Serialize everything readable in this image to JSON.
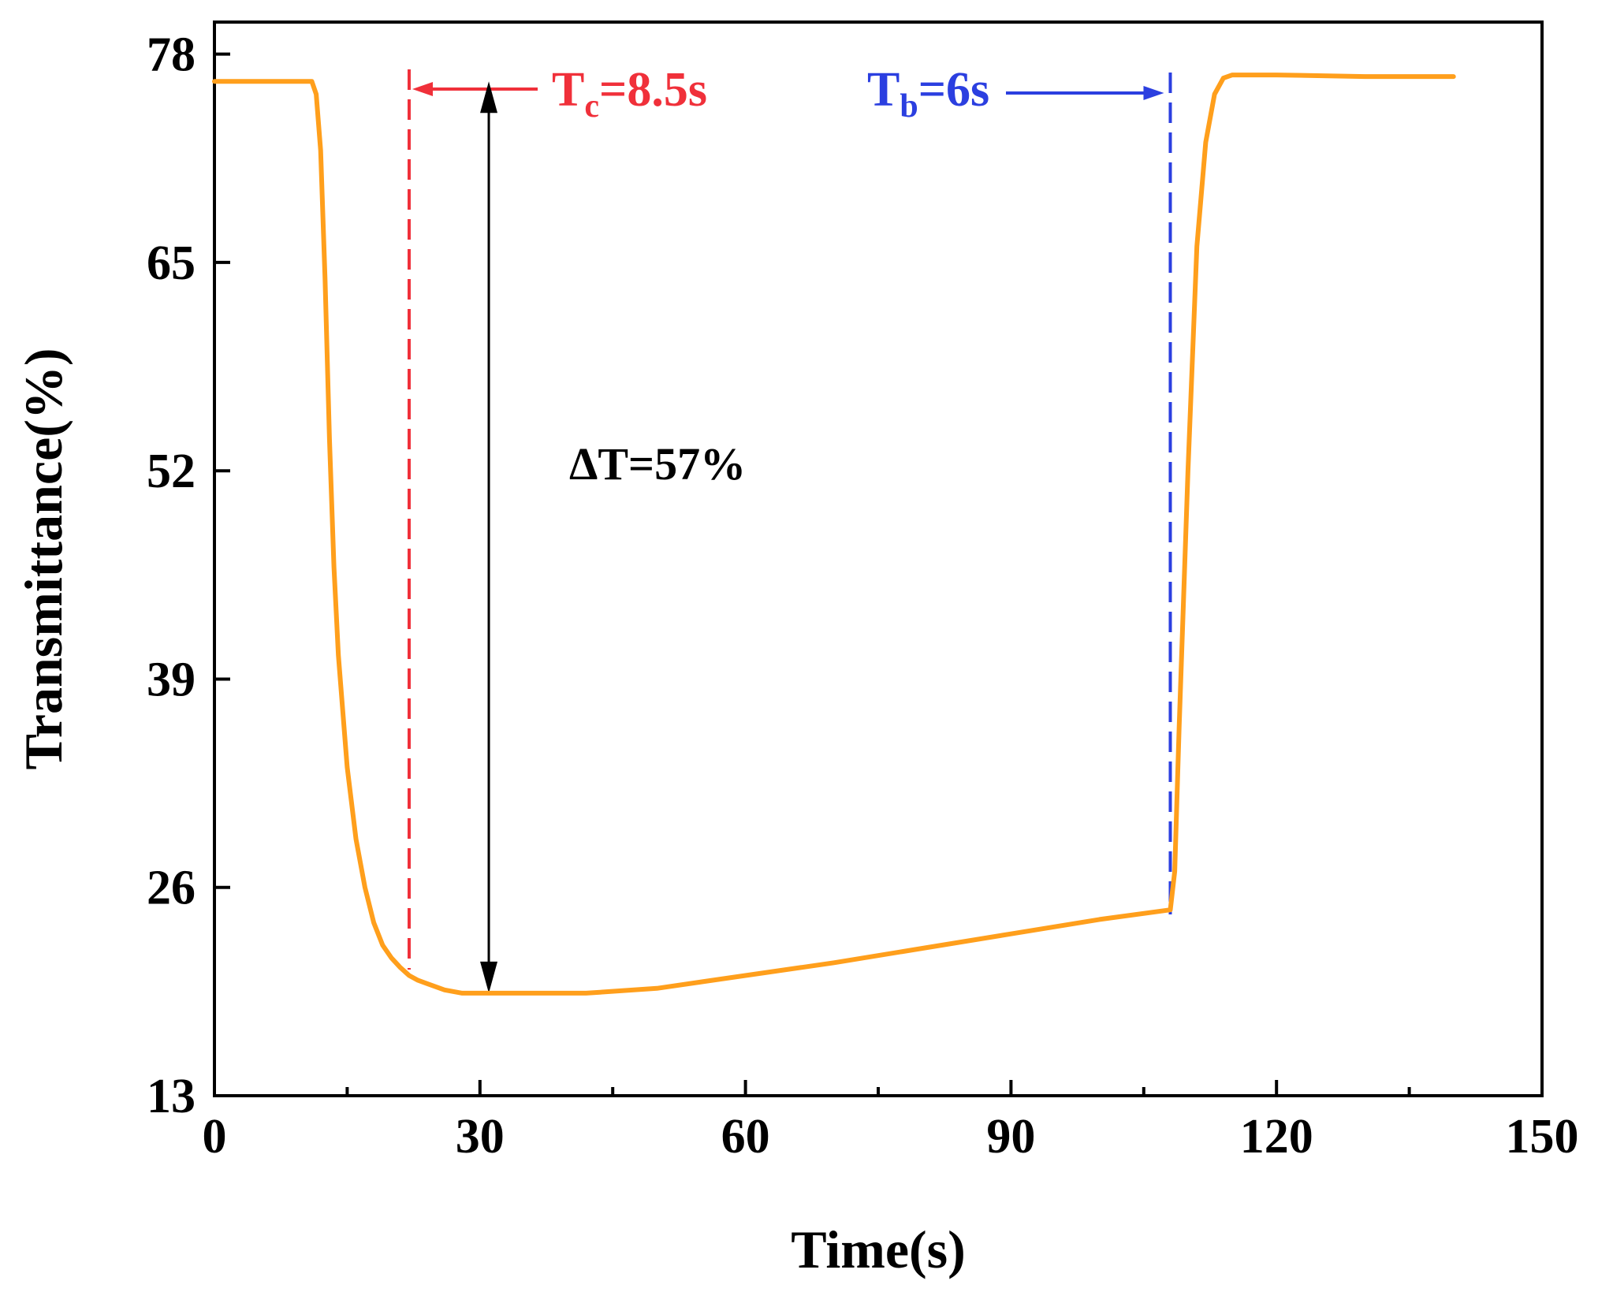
{
  "colors": {
    "curve": "#ff9f1c",
    "tc_marker": "#f0303a",
    "tb_marker": "#2b3fe0",
    "axis": "#000000"
  },
  "chart_data": {
    "type": "line",
    "title": "",
    "xlabel": "Time(s)",
    "ylabel": "Transmittance(%)",
    "xlim": [
      0,
      150
    ],
    "ylim": [
      13,
      80
    ],
    "xticks": [
      0,
      30,
      60,
      90,
      120,
      150
    ],
    "xtick_labels": [
      "0",
      "30",
      "60",
      "90",
      "120",
      "150"
    ],
    "yticks": [
      13,
      26,
      39,
      52,
      65,
      78
    ],
    "ytick_labels": [
      "13",
      "26",
      "39",
      "52",
      "65",
      "78"
    ],
    "grid": false,
    "series": [
      {
        "name": "Transmittance",
        "x": [
          0,
          11,
          11.5,
          12,
          12.5,
          13,
          13.5,
          14,
          15,
          16,
          17,
          18,
          19,
          20,
          21,
          22,
          23,
          24,
          26,
          28,
          30,
          35,
          42,
          50,
          60,
          70,
          80,
          90,
          100,
          108,
          108.5,
          109,
          110,
          111,
          112,
          113,
          114,
          115,
          116,
          120,
          130,
          140
        ],
        "y": [
          76.3,
          76.3,
          75.5,
          72,
          64,
          54,
          46,
          40.5,
          33.5,
          29,
          26,
          23.8,
          22.4,
          21.6,
          21,
          20.5,
          20.2,
          20,
          19.6,
          19.4,
          19.4,
          19.4,
          19.4,
          19.7,
          20.5,
          21.3,
          22.2,
          23.1,
          24,
          24.6,
          27,
          36,
          52,
          66,
          72.5,
          75.5,
          76.5,
          76.7,
          76.7,
          76.7,
          76.6,
          76.6
        ]
      }
    ],
    "annotations": {
      "tc": {
        "x": 22,
        "label_main": "T",
        "label_sub": "c",
        "label_rest": "=8.5s"
      },
      "tb": {
        "x": 108,
        "label_main": "T",
        "label_sub": "b",
        "label_rest": "=6s"
      },
      "delta": {
        "x": 31,
        "y_top": 76.3,
        "y_bottom": 19.4,
        "label": "ΔT=57%"
      }
    }
  }
}
